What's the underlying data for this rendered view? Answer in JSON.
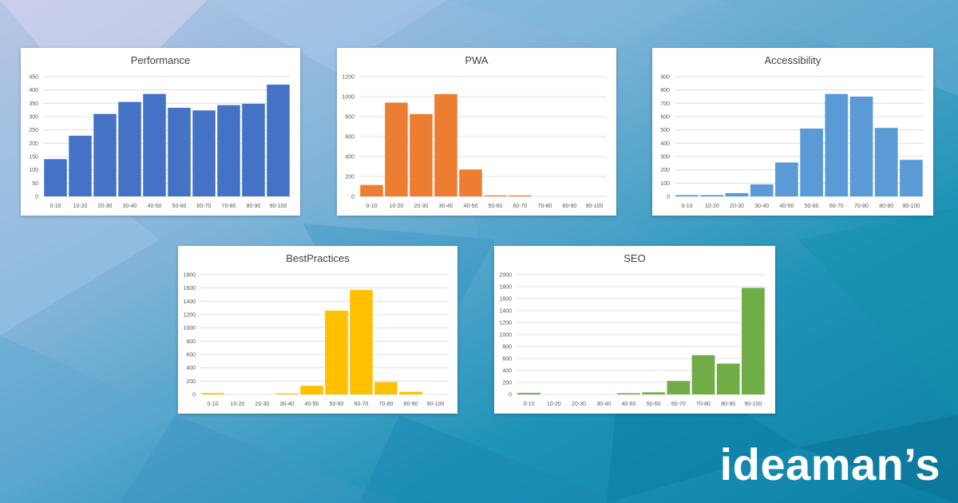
{
  "brand": "ideaman’s",
  "chart_data": [
    {
      "type": "bar",
      "title": "Performance",
      "categories": [
        "0-10",
        "10-20",
        "20-30",
        "30-40",
        "40-50",
        "50-60",
        "60-70",
        "70-80",
        "80-90",
        "90-100"
      ],
      "values": [
        140,
        228,
        310,
        355,
        385,
        333,
        323,
        343,
        348,
        420
      ],
      "ylim": [
        0,
        450
      ],
      "ytick_step": 50,
      "grid": true,
      "color": "#4472c4"
    },
    {
      "type": "bar",
      "title": "PWA",
      "categories": [
        "0-10",
        "10-20",
        "20-30",
        "30-40",
        "40-50",
        "50-60",
        "60-70",
        "70-80",
        "80-90",
        "90-100"
      ],
      "values": [
        115,
        940,
        825,
        1025,
        270,
        10,
        10,
        0,
        0,
        0
      ],
      "ylim": [
        0,
        1200
      ],
      "ytick_step": 200,
      "grid": true,
      "color": "#ed7d31"
    },
    {
      "type": "bar",
      "title": "Accessibility",
      "categories": [
        "0-10",
        "10-20",
        "20-30",
        "30-40",
        "40-50",
        "50-60",
        "60-70",
        "70-80",
        "80-90",
        "90-100"
      ],
      "values": [
        10,
        10,
        25,
        90,
        255,
        510,
        770,
        750,
        515,
        275
      ],
      "ylim": [
        0,
        900
      ],
      "ytick_step": 100,
      "grid": true,
      "color": "#5b9bd5"
    },
    {
      "type": "bar",
      "title": "BestPractices",
      "categories": [
        "0-10",
        "10-20",
        "20-30",
        "30-40",
        "40-50",
        "50-60",
        "60-70",
        "70-80",
        "80-90",
        "90-100"
      ],
      "values": [
        20,
        0,
        0,
        15,
        130,
        1260,
        1570,
        185,
        40,
        0
      ],
      "ylim": [
        0,
        1800
      ],
      "ytick_step": 200,
      "grid": true,
      "color": "#ffc000"
    },
    {
      "type": "bar",
      "title": "SEO",
      "categories": [
        "0-10",
        "10-20",
        "20-30",
        "30-40",
        "40-50",
        "50-60",
        "60-70",
        "70-80",
        "80-90",
        "90-100"
      ],
      "values": [
        25,
        0,
        0,
        0,
        20,
        35,
        225,
        655,
        515,
        1780
      ],
      "ylim": [
        0,
        2000
      ],
      "ytick_step": 200,
      "grid": true,
      "color": "#70ad47"
    }
  ]
}
